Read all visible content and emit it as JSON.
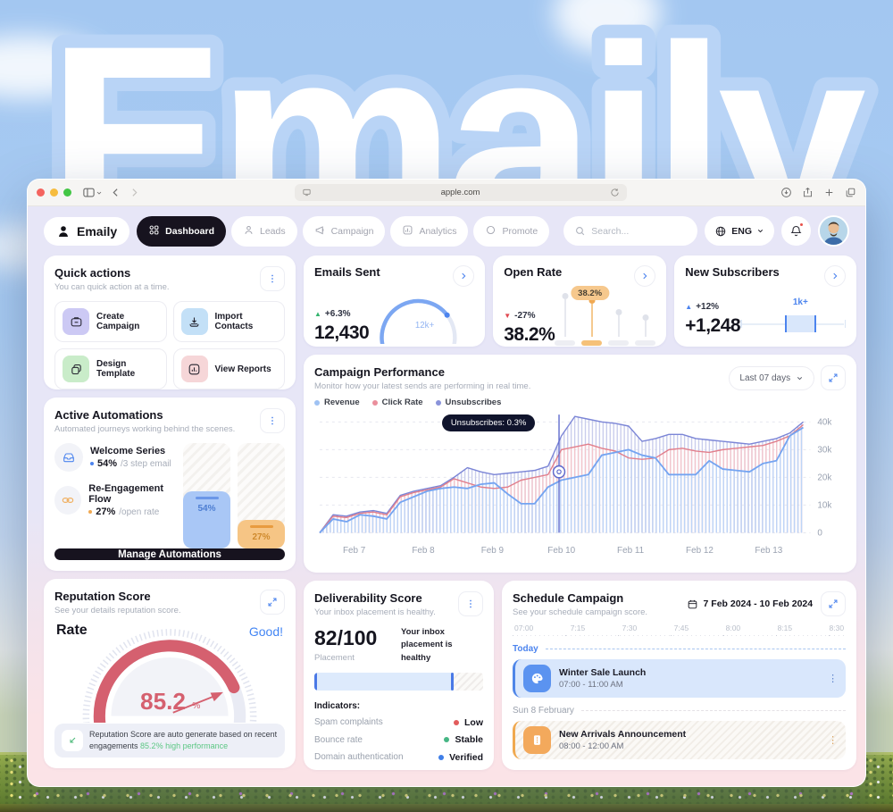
{
  "background": {
    "brand_text": "Emaily"
  },
  "browser": {
    "url": "apple.com"
  },
  "nav": {
    "logo_label": "Emaily",
    "items": [
      {
        "label": "Dashboard",
        "icon": "grid-icon",
        "active": true
      },
      {
        "label": "Leads",
        "icon": "user-icon",
        "active": false
      },
      {
        "label": "Campaign",
        "icon": "megaphone-icon",
        "active": false
      },
      {
        "label": "Analytics",
        "icon": "analytics-icon",
        "active": false
      },
      {
        "label": "Promote",
        "icon": "circle-icon",
        "active": false
      }
    ],
    "search_placeholder": "Search...",
    "language": "ENG"
  },
  "quick_actions": {
    "title": "Quick actions",
    "subtitle": "You can quick action at a time.",
    "actions": [
      {
        "label": "Create Campaign"
      },
      {
        "label": "Import Contacts"
      },
      {
        "label": "Design Template"
      },
      {
        "label": "View Reports"
      }
    ]
  },
  "stats": {
    "emails_sent": {
      "title": "Emails Sent",
      "delta": "+6.3%",
      "value": "12,430"
    },
    "open_rate": {
      "title": "Open Rate",
      "delta": "-27%",
      "value": "38.2%"
    },
    "new_subscribers": {
      "title": "New Subscribers",
      "delta": "+12%",
      "value": "+1,248"
    }
  },
  "campaign_performance": {
    "title": "Campaign Performance",
    "subtitle": "Monitor how your latest sends are performing in real time.",
    "range_selector": "Last 07 days"
  },
  "active_automations": {
    "title": "Active Automations",
    "subtitle": "Automated journeys working behind the scenes.",
    "items": [
      {
        "name": "Welcome Series",
        "value": "54%",
        "suffix": "/3 step email"
      },
      {
        "name": "Re-Engagement Flow",
        "value": "27%",
        "suffix": "/open rate"
      }
    ],
    "bars": [
      {
        "label": "54%",
        "percent": 54,
        "theme": "blue"
      },
      {
        "label": "27%",
        "percent": 27,
        "theme": "orange"
      }
    ],
    "button_label": "Manage Automations"
  },
  "reputation": {
    "title": "Reputation Score",
    "subtitle": "See your details reputation score.",
    "rate_label": "Rate",
    "status": "Good!",
    "value": "85.2",
    "unit": "%",
    "note_text": "Reputation Score are auto generate based on recent engagements ",
    "note_highlight": "85.2% high performance"
  },
  "deliverability": {
    "title": "Deliverability Score",
    "subtitle": "Your inbox placement is healthy.",
    "score": "82/100",
    "score_label": "Placement",
    "score_note": "Your inbox placement is healthy",
    "progress_percent": 82,
    "indicators_label": "Indicators:",
    "indicators": [
      {
        "name": "Spam complaints",
        "status": "Low",
        "color": "#e25c5c"
      },
      {
        "name": "Bounce rate",
        "status": "Stable",
        "color": "#46b684"
      },
      {
        "name": "Domain authentication",
        "status": "Verified",
        "color": "#3f7fe8"
      }
    ]
  },
  "schedule": {
    "title": "Schedule Campaign",
    "subtitle": "See your schedule campaign score.",
    "date_range": "7 Feb 2024 - 10 Feb 2024",
    "timeline": [
      "07:00",
      "7:15",
      "7:30",
      "7:45",
      "8:00",
      "8:15",
      "8:30"
    ],
    "groups": [
      {
        "label": "Today",
        "theme": "blue",
        "events": [
          {
            "title": "Winter Sale Launch",
            "time": "07:00 - 11:00 AM",
            "theme": "blue",
            "icon": "palette-icon"
          }
        ]
      },
      {
        "label": "Sun 8 February",
        "theme": "gray",
        "events": [
          {
            "title": "New Arrivals Announcement",
            "time": "08:00 - 12:00 AM",
            "theme": "orange",
            "icon": "ticket-icon"
          }
        ]
      }
    ]
  },
  "colors": {
    "accent_blue": "#4c84ee",
    "accent_orange": "#f0a952",
    "accent_red": "#d5606f",
    "navy": "#17131f",
    "sky": "#a3c7f1"
  },
  "chart_data": {
    "campaign": {
      "type": "area",
      "title": "Campaign Performance",
      "x_labels": [
        "Feb 7",
        "Feb 8",
        "Feb 9",
        "Feb 10",
        "Feb 11",
        "Feb 12",
        "Feb 13"
      ],
      "y_ticks": [
        "0",
        "10k",
        "20k",
        "30k",
        "40k"
      ],
      "y_max": 42,
      "grid": true,
      "legend_position": "top-left",
      "series": [
        {
          "name": "Revenue",
          "color": "#74a4f1",
          "fill": "#bdd5f8",
          "legend_dot": "#9fc2f3",
          "values": [
            0,
            5,
            4,
            6.5,
            6,
            5,
            11,
            13,
            15,
            16,
            16.5,
            16,
            17.5,
            18,
            14,
            10.5,
            10.5,
            16.5,
            19,
            20,
            21,
            28,
            29,
            30,
            28,
            27,
            21,
            21,
            21,
            26,
            23,
            22.5,
            22,
            25,
            26,
            35,
            38
          ]
        },
        {
          "name": "Click Rate",
          "color": "#e17f8c",
          "fill": "#f4c6cc",
          "legend_dot": "#ea8f9c",
          "values": [
            0,
            6,
            5.5,
            7,
            7.5,
            6.5,
            13,
            14.5,
            15.5,
            16.5,
            19.5,
            18,
            16.5,
            16,
            16.5,
            19,
            20,
            21,
            30,
            31,
            32,
            30.5,
            29.5,
            27,
            26.5,
            27,
            30,
            30.5,
            29.5,
            29,
            30,
            30.5,
            31,
            31.5,
            33,
            35,
            39
          ]
        },
        {
          "name": "Unsubscribes",
          "color": "#7b85d6",
          "fill": "#c9cdec",
          "legend_dot": "#8a93da",
          "values": [
            0,
            6.5,
            6,
            7.5,
            8,
            7,
            13.5,
            15,
            16,
            17,
            20,
            23.5,
            22,
            21,
            21.5,
            22,
            22.5,
            24,
            35,
            42,
            41,
            40,
            39.5,
            38.5,
            33,
            34,
            35.5,
            35.5,
            34,
            33.5,
            33,
            32.5,
            32,
            33,
            34,
            36,
            40
          ]
        }
      ],
      "cursor": {
        "t": 0.495,
        "value": 22,
        "tooltip": "Unsubscribes: 0.3%"
      }
    },
    "emails_gauge": {
      "type": "gauge",
      "percent": 80,
      "label": "12k+"
    },
    "open_rate_spark": {
      "type": "lollipop",
      "values": [
        92,
        80,
        52,
        40
      ],
      "highlight_index": 1,
      "highlight_label": "38.2%"
    },
    "subscribers_range": {
      "type": "range",
      "box_start": 0.42,
      "box_width": 0.3,
      "label": "1k+"
    },
    "reputation_gauge": {
      "type": "gauge",
      "value": 85.2,
      "max": 100
    }
  }
}
